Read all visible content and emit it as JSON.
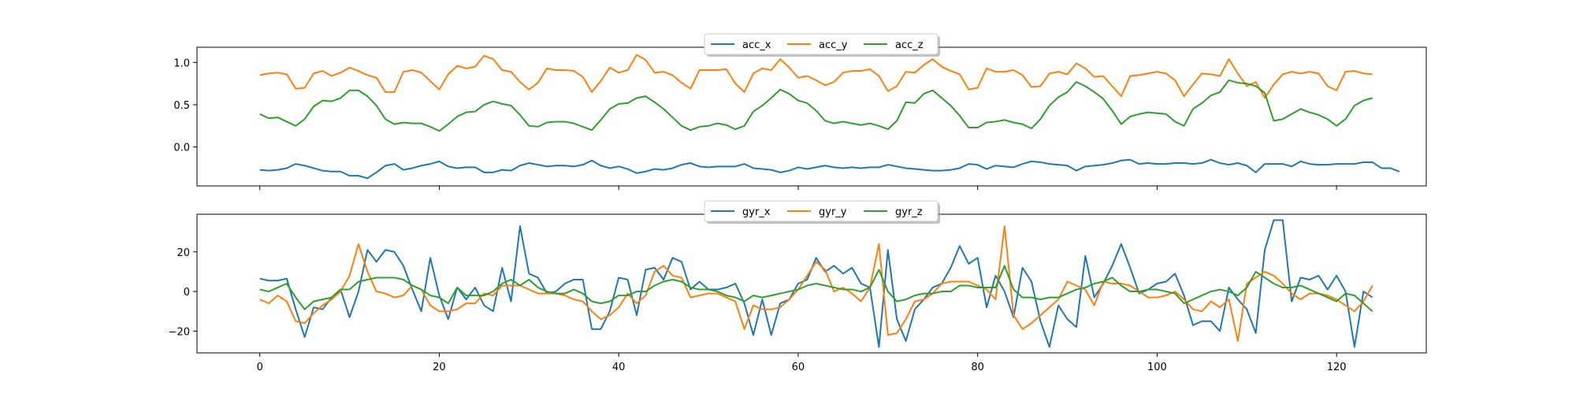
{
  "chart_data": [
    {
      "type": "line",
      "title": "",
      "xlabel": "",
      "ylabel": "",
      "xlim": [
        -7,
        130
      ],
      "ylim": [
        -0.46,
        1.18
      ],
      "xticks": [
        0,
        20,
        40,
        60,
        80,
        100,
        120
      ],
      "yticks": [
        0.0,
        0.5,
        1.0
      ],
      "ytick_labels": [
        "0.0",
        "0.5",
        "1.0"
      ],
      "show_xtick_labels": false,
      "legend": {
        "position": "top-center",
        "columns": 3
      },
      "series": [
        {
          "name": "acc_x",
          "color": "#1f77b4",
          "values": [
            -0.27,
            -0.28,
            -0.27,
            -0.25,
            -0.2,
            -0.22,
            -0.25,
            -0.28,
            -0.29,
            -0.29,
            -0.34,
            -0.34,
            -0.37,
            -0.3,
            -0.22,
            -0.2,
            -0.27,
            -0.25,
            -0.22,
            -0.2,
            -0.17,
            -0.23,
            -0.25,
            -0.24,
            -0.24,
            -0.3,
            -0.3,
            -0.27,
            -0.28,
            -0.22,
            -0.19,
            -0.21,
            -0.23,
            -0.22,
            -0.22,
            -0.23,
            -0.21,
            -0.16,
            -0.22,
            -0.25,
            -0.23,
            -0.26,
            -0.31,
            -0.29,
            -0.26,
            -0.27,
            -0.25,
            -0.21,
            -0.19,
            -0.23,
            -0.24,
            -0.23,
            -0.23,
            -0.23,
            -0.2,
            -0.25,
            -0.26,
            -0.27,
            -0.3,
            -0.28,
            -0.24,
            -0.26,
            -0.24,
            -0.22,
            -0.24,
            -0.25,
            -0.24,
            -0.25,
            -0.24,
            -0.24,
            -0.21,
            -0.23,
            -0.25,
            -0.26,
            -0.27,
            -0.28,
            -0.28,
            -0.27,
            -0.25,
            -0.2,
            -0.21,
            -0.26,
            -0.22,
            -0.23,
            -0.24,
            -0.2,
            -0.17,
            -0.18,
            -0.2,
            -0.21,
            -0.22,
            -0.28,
            -0.23,
            -0.22,
            -0.21,
            -0.19,
            -0.16,
            -0.15,
            -0.2,
            -0.19,
            -0.2,
            -0.2,
            -0.19,
            -0.19,
            -0.2,
            -0.19,
            -0.15,
            -0.19,
            -0.21,
            -0.19,
            -0.22,
            -0.3,
            -0.2,
            -0.2,
            -0.2,
            -0.23,
            -0.17,
            -0.2,
            -0.21,
            -0.21,
            -0.2,
            -0.2,
            -0.2,
            -0.18,
            -0.18,
            -0.25,
            -0.25,
            -0.29
          ]
        },
        {
          "name": "acc_y",
          "color": "#ff7f0e",
          "values": [
            0.85,
            0.87,
            0.88,
            0.86,
            0.69,
            0.7,
            0.87,
            0.9,
            0.84,
            0.88,
            0.94,
            0.9,
            0.85,
            0.82,
            0.65,
            0.65,
            0.89,
            0.91,
            0.88,
            0.78,
            0.68,
            0.86,
            0.96,
            0.93,
            0.95,
            1.08,
            1.04,
            0.91,
            0.89,
            0.77,
            0.68,
            0.76,
            0.93,
            0.91,
            0.91,
            0.9,
            0.83,
            0.65,
            0.78,
            0.94,
            0.88,
            0.91,
            1.09,
            1.03,
            0.88,
            0.89,
            0.85,
            0.76,
            0.69,
            0.91,
            0.91,
            0.91,
            0.92,
            0.75,
            0.65,
            0.87,
            0.93,
            0.91,
            1.04,
            0.94,
            0.82,
            0.84,
            0.79,
            0.73,
            0.77,
            0.88,
            0.9,
            0.9,
            0.92,
            0.84,
            0.66,
            0.72,
            0.89,
            0.88,
            0.97,
            1.04,
            0.95,
            0.9,
            0.86,
            0.68,
            0.7,
            0.93,
            0.89,
            0.89,
            0.91,
            0.85,
            0.71,
            0.72,
            0.87,
            0.89,
            0.86,
            0.99,
            0.93,
            0.83,
            0.84,
            0.72,
            0.6,
            0.84,
            0.85,
            0.87,
            0.89,
            0.87,
            0.79,
            0.6,
            0.74,
            0.87,
            0.86,
            0.84,
            1.04,
            0.87,
            0.72,
            0.77,
            0.58,
            0.74,
            0.86,
            0.89,
            0.87,
            0.89,
            0.87,
            0.72,
            0.67,
            0.89,
            0.9,
            0.87,
            0.86
          ]
        },
        {
          "name": "acc_z",
          "color": "#2ca02c",
          "values": [
            0.39,
            0.34,
            0.35,
            0.3,
            0.25,
            0.33,
            0.48,
            0.55,
            0.54,
            0.58,
            0.67,
            0.67,
            0.6,
            0.49,
            0.33,
            0.27,
            0.29,
            0.28,
            0.28,
            0.24,
            0.19,
            0.27,
            0.36,
            0.41,
            0.42,
            0.5,
            0.54,
            0.51,
            0.49,
            0.38,
            0.25,
            0.24,
            0.29,
            0.3,
            0.3,
            0.28,
            0.24,
            0.2,
            0.32,
            0.45,
            0.51,
            0.52,
            0.58,
            0.6,
            0.53,
            0.45,
            0.35,
            0.25,
            0.2,
            0.24,
            0.25,
            0.28,
            0.26,
            0.21,
            0.25,
            0.42,
            0.49,
            0.58,
            0.68,
            0.63,
            0.55,
            0.52,
            0.43,
            0.31,
            0.28,
            0.3,
            0.28,
            0.26,
            0.28,
            0.25,
            0.21,
            0.31,
            0.53,
            0.52,
            0.63,
            0.67,
            0.58,
            0.49,
            0.37,
            0.23,
            0.23,
            0.29,
            0.3,
            0.32,
            0.29,
            0.27,
            0.22,
            0.33,
            0.49,
            0.59,
            0.65,
            0.77,
            0.72,
            0.65,
            0.57,
            0.43,
            0.27,
            0.36,
            0.39,
            0.41,
            0.4,
            0.39,
            0.3,
            0.25,
            0.45,
            0.52,
            0.61,
            0.65,
            0.79,
            0.76,
            0.75,
            0.72,
            0.64,
            0.31,
            0.33,
            0.39,
            0.45,
            0.41,
            0.38,
            0.33,
            0.25,
            0.33,
            0.49,
            0.55,
            0.58
          ]
        }
      ]
    },
    {
      "type": "line",
      "title": "",
      "xlabel": "",
      "ylabel": "",
      "xlim": [
        -7,
        130
      ],
      "ylim": [
        -31,
        39
      ],
      "xticks": [
        0,
        20,
        40,
        60,
        80,
        100,
        120
      ],
      "xtick_labels": [
        "0",
        "20",
        "40",
        "60",
        "80",
        "100",
        "120"
      ],
      "yticks": [
        -20,
        0,
        20
      ],
      "ytick_labels": [
        "−20",
        "0",
        "20"
      ],
      "show_xtick_labels": true,
      "legend": {
        "position": "top-center",
        "columns": 3
      },
      "series": [
        {
          "name": "gyr_x",
          "color": "#1f77b4",
          "values": [
            6.5,
            5.5,
            5.5,
            6.5,
            -9,
            -23,
            -8,
            -9,
            -3,
            1,
            -13,
            0,
            21,
            15,
            21,
            20,
            13,
            1,
            -10,
            17,
            -2,
            -14,
            2,
            -4,
            2,
            -7,
            -10,
            12,
            -5,
            33,
            9,
            7,
            -1,
            0,
            4,
            6,
            6,
            -19,
            -19,
            -10,
            7,
            6,
            -12,
            11,
            12,
            6,
            17,
            15,
            1,
            5,
            1,
            1,
            2,
            4,
            -6,
            -22,
            -4,
            -22,
            -6,
            -4,
            4,
            6,
            17,
            10,
            13,
            9,
            12,
            4,
            2,
            -28,
            21,
            -14,
            -25,
            -9,
            -4,
            2,
            4,
            12,
            23,
            14,
            17,
            -8,
            8,
            0,
            -13,
            12,
            5,
            -15,
            -28,
            -7,
            -14,
            -18,
            18,
            -3,
            4,
            13,
            24,
            12,
            -1,
            1,
            4,
            5,
            9,
            -2,
            -17,
            -15,
            -15,
            -20,
            2,
            -4,
            -9,
            -21,
            21,
            36,
            36,
            -5,
            7,
            6,
            8,
            1,
            8,
            0,
            -28,
            0,
            -3
          ]
        },
        {
          "name": "gyr_y",
          "color": "#ff7f0e",
          "values": [
            -4,
            -6,
            -2,
            -5,
            -15,
            -16,
            -11,
            -7,
            -4,
            0,
            8,
            24,
            10,
            0,
            -1,
            -3,
            -2,
            3,
            1,
            -7,
            -10,
            -10,
            -9,
            -6,
            -6,
            -1,
            -2,
            3,
            3,
            3,
            1,
            -1,
            -1,
            -1,
            -2,
            -4,
            -5,
            -10,
            -14,
            -12,
            -8,
            -1,
            -6,
            -2,
            10,
            13,
            8,
            7,
            -3,
            -2,
            -1,
            -1,
            -3,
            -5,
            -19,
            -7,
            -9,
            -9,
            -8,
            -4,
            1,
            8,
            15,
            11,
            0,
            2,
            -1,
            -5,
            2,
            24,
            -22,
            -21,
            -14,
            -5,
            -4,
            -1,
            4,
            5,
            5,
            5,
            3,
            1,
            -4,
            33,
            -12,
            -19,
            -16,
            -12,
            -8,
            -4,
            5,
            3,
            1,
            -7,
            5,
            4,
            4,
            3,
            0,
            -3,
            -3,
            -2,
            0,
            -4,
            -9,
            -10,
            -5,
            -8,
            -4,
            -25,
            4,
            7,
            10,
            8,
            4,
            -1,
            -4,
            -1,
            -1,
            -2,
            -4,
            -7,
            -10,
            -5,
            3
          ]
        },
        {
          "name": "gyr_z",
          "color": "#2ca02c",
          "values": [
            1,
            0,
            2,
            4,
            -3,
            -9,
            -5,
            -4,
            -3,
            1,
            1,
            5,
            6,
            7,
            7,
            7,
            6,
            3,
            1,
            -2,
            -3,
            -6,
            2,
            -2,
            -2,
            -2,
            0,
            4,
            6,
            3,
            6,
            2,
            0,
            -1,
            -1,
            1,
            -1,
            -5,
            -6,
            -5,
            -2,
            -2,
            0,
            0,
            3,
            5,
            6,
            5,
            2,
            1,
            1,
            0,
            -2,
            -3,
            -5,
            -2,
            -3,
            -2,
            -1,
            0,
            1,
            3,
            4,
            3,
            2,
            1,
            1,
            0,
            2,
            11,
            0,
            -5,
            -4,
            -2,
            -1,
            -1,
            0,
            0,
            3,
            3,
            2,
            2,
            2,
            13,
            1,
            -3,
            -3,
            -4,
            -3,
            -3,
            -1,
            1,
            2,
            4,
            5,
            7,
            3,
            0,
            0,
            1,
            1,
            0,
            -1,
            -6,
            -4,
            -2,
            0,
            1,
            0,
            -2,
            2,
            10,
            7,
            4,
            2,
            2,
            3,
            1,
            -1,
            -3,
            -5,
            -1,
            -2,
            -6,
            -10
          ]
        }
      ]
    }
  ]
}
